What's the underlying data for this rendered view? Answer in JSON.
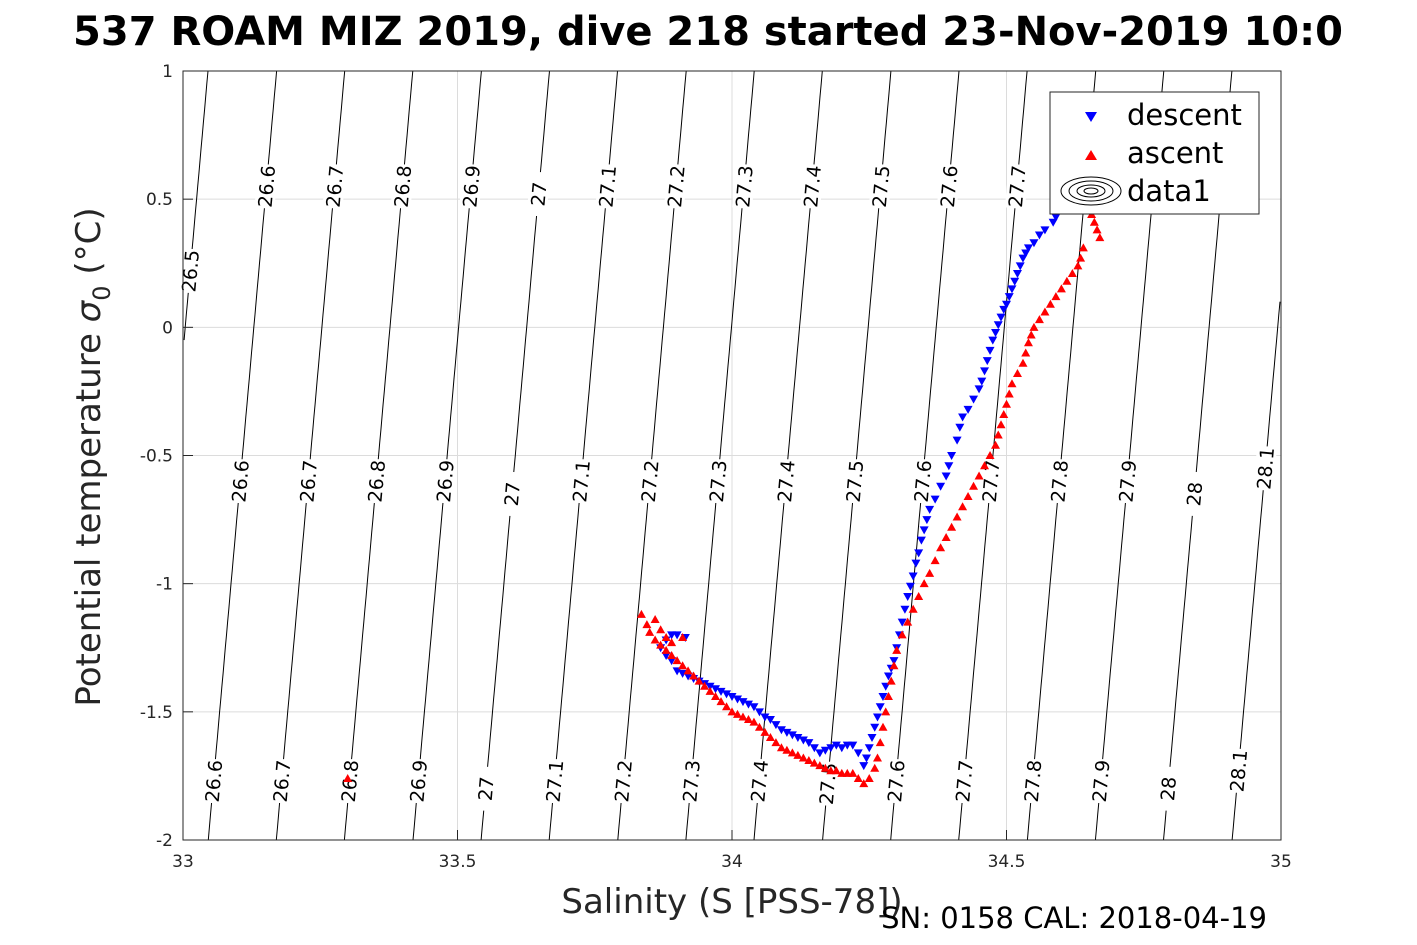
{
  "title": "537 ROAM MIZ 2019, dive 218 started 23-Nov-2019 10:0",
  "footer": "SN: 0158  CAL: 2018-04-19",
  "colors": {
    "descent": "#0000ff",
    "ascent": "#ff0000",
    "grid": "#dcdcdc",
    "axis": "#262626",
    "contour": "#000000"
  },
  "chart_data": {
    "type": "scatter",
    "xlabel": "Salinity (S [PSS-78])",
    "ylabel_main": "Potential temperature ",
    "ylabel_sigma": "σ",
    "ylabel_sub": "0",
    "ylabel_unit": " (°C)",
    "xlim": [
      33,
      35
    ],
    "ylim": [
      -2,
      1
    ],
    "xticks": [
      "33",
      "33.5",
      "34",
      "34.5",
      "35"
    ],
    "yticks": [
      "1",
      "0.5",
      "0",
      "-0.5",
      "-1",
      "-1.5",
      "-2"
    ],
    "grid": true,
    "legend_position": "top-right",
    "legend": [
      "descent",
      "ascent",
      "data1"
    ],
    "contours": {
      "slope": 0.0415,
      "lines": [
        {
          "level": "26.5",
          "x_at_0": 33.004
        },
        {
          "level": "26.6",
          "x_at_0": 33.129
        },
        {
          "level": "26.7",
          "x_at_0": 33.253
        },
        {
          "level": "26.8",
          "x_at_0": 33.377
        },
        {
          "level": "26.9",
          "x_at_0": 33.502
        },
        {
          "level": "27",
          "x_at_0": 33.626
        },
        {
          "level": "27.1",
          "x_at_0": 33.75
        },
        {
          "level": "27.2",
          "x_at_0": 33.875
        },
        {
          "level": "27.3",
          "x_at_0": 33.999
        },
        {
          "level": "27.4",
          "x_at_0": 34.123
        },
        {
          "level": "27.5",
          "x_at_0": 34.248
        },
        {
          "level": "27.6",
          "x_at_0": 34.372
        },
        {
          "level": "27.7",
          "x_at_0": 34.496
        },
        {
          "level": "27.8",
          "x_at_0": 34.621
        },
        {
          "level": "27.9",
          "x_at_0": 34.745
        },
        {
          "level": "28",
          "x_at_0": 34.869
        },
        {
          "level": "28.1",
          "x_at_0": 34.994
        }
      ],
      "labels": [
        {
          "text": "26.5",
          "y": 0.22
        },
        {
          "text": "26.6",
          "y": 0.55
        },
        {
          "text": "26.7",
          "y": 0.55
        },
        {
          "text": "26.8",
          "y": 0.55
        },
        {
          "text": "26.9",
          "y": 0.55
        },
        {
          "text": "27",
          "y": 0.52
        },
        {
          "text": "27.1",
          "y": 0.55
        },
        {
          "text": "27.2",
          "y": 0.55
        },
        {
          "text": "27.3",
          "y": 0.55
        },
        {
          "text": "27.4",
          "y": 0.55
        },
        {
          "text": "27.5",
          "y": 0.55
        },
        {
          "text": "27.6",
          "y": 0.55
        },
        {
          "text": "27.7",
          "y": 0.55
        },
        {
          "text": "26.6",
          "y": -0.6
        },
        {
          "text": "26.7",
          "y": -0.6
        },
        {
          "text": "26.8",
          "y": -0.6
        },
        {
          "text": "26.9",
          "y": -0.6
        },
        {
          "text": "27",
          "y": -0.65
        },
        {
          "text": "27.1",
          "y": -0.6
        },
        {
          "text": "27.2",
          "y": -0.6
        },
        {
          "text": "27.3",
          "y": -0.6
        },
        {
          "text": "27.4",
          "y": -0.6
        },
        {
          "text": "27.5",
          "y": -0.6
        },
        {
          "text": "27.6",
          "y": -0.6
        },
        {
          "text": "27.7",
          "y": -0.6
        },
        {
          "text": "27.8",
          "y": -0.6
        },
        {
          "text": "27.9",
          "y": -0.6
        },
        {
          "text": "28",
          "y": -0.65
        },
        {
          "text": "28.1",
          "y": -0.55
        },
        {
          "text": "26.6",
          "y": -1.77
        },
        {
          "text": "26.7",
          "y": -1.77
        },
        {
          "text": "26.8",
          "y": -1.77
        },
        {
          "text": "26.9",
          "y": -1.77
        },
        {
          "text": "27",
          "y": -1.8
        },
        {
          "text": "27.1",
          "y": -1.77
        },
        {
          "text": "27.2",
          "y": -1.77
        },
        {
          "text": "27.3",
          "y": -1.77
        },
        {
          "text": "27.4",
          "y": -1.77
        },
        {
          "text": "27.5",
          "y": -1.78
        },
        {
          "text": "27.6",
          "y": -1.77
        },
        {
          "text": "27.7",
          "y": -1.77
        },
        {
          "text": "27.8",
          "y": -1.77
        },
        {
          "text": "27.9",
          "y": -1.77
        },
        {
          "text": "28",
          "y": -1.8
        },
        {
          "text": "28.1",
          "y": -1.73
        }
      ]
    },
    "series": [
      {
        "name": "descent",
        "marker": "triangle-down",
        "points": [
          [
            34.6,
            0.46
          ],
          [
            34.59,
            0.43
          ],
          [
            34.585,
            0.41
          ],
          [
            34.57,
            0.38
          ],
          [
            34.56,
            0.36
          ],
          [
            34.55,
            0.33
          ],
          [
            34.54,
            0.31
          ],
          [
            34.535,
            0.29
          ],
          [
            34.53,
            0.27
          ],
          [
            34.525,
            0.24
          ],
          [
            34.52,
            0.21
          ],
          [
            34.515,
            0.18
          ],
          [
            34.51,
            0.15
          ],
          [
            34.505,
            0.12
          ],
          [
            34.5,
            0.09
          ],
          [
            34.495,
            0.07
          ],
          [
            34.49,
            0.04
          ],
          [
            34.485,
            0.01
          ],
          [
            34.48,
            -0.02
          ],
          [
            34.475,
            -0.05
          ],
          [
            34.47,
            -0.09
          ],
          [
            34.465,
            -0.13
          ],
          [
            34.46,
            -0.17
          ],
          [
            34.455,
            -0.21
          ],
          [
            34.45,
            -0.24
          ],
          [
            34.44,
            -0.28
          ],
          [
            34.43,
            -0.32
          ],
          [
            34.42,
            -0.35
          ],
          [
            34.415,
            -0.39
          ],
          [
            34.41,
            -0.44
          ],
          [
            34.4,
            -0.5
          ],
          [
            34.395,
            -0.54
          ],
          [
            34.39,
            -0.58
          ],
          [
            34.38,
            -0.62
          ],
          [
            34.37,
            -0.67
          ],
          [
            34.36,
            -0.71
          ],
          [
            34.355,
            -0.75
          ],
          [
            34.35,
            -0.79
          ],
          [
            34.345,
            -0.83
          ],
          [
            34.34,
            -0.88
          ],
          [
            34.335,
            -0.92
          ],
          [
            34.33,
            -0.97
          ],
          [
            34.325,
            -1.01
          ],
          [
            34.32,
            -1.05
          ],
          [
            34.315,
            -1.1
          ],
          [
            34.31,
            -1.15
          ],
          [
            34.305,
            -1.2
          ],
          [
            34.3,
            -1.25
          ],
          [
            34.295,
            -1.3
          ],
          [
            34.29,
            -1.33
          ],
          [
            34.285,
            -1.36
          ],
          [
            34.28,
            -1.4
          ],
          [
            34.275,
            -1.44
          ],
          [
            34.27,
            -1.48
          ],
          [
            34.265,
            -1.52
          ],
          [
            34.26,
            -1.56
          ],
          [
            34.255,
            -1.6
          ],
          [
            34.25,
            -1.64
          ],
          [
            34.245,
            -1.68
          ],
          [
            34.24,
            -1.71
          ],
          [
            34.23,
            -1.66
          ],
          [
            34.22,
            -1.63
          ],
          [
            34.21,
            -1.63
          ],
          [
            34.2,
            -1.64
          ],
          [
            34.19,
            -1.63
          ],
          [
            34.18,
            -1.64
          ],
          [
            34.17,
            -1.65
          ],
          [
            34.16,
            -1.66
          ],
          [
            34.15,
            -1.64
          ],
          [
            34.14,
            -1.62
          ],
          [
            34.13,
            -1.61
          ],
          [
            34.12,
            -1.6
          ],
          [
            34.11,
            -1.59
          ],
          [
            34.1,
            -1.58
          ],
          [
            34.09,
            -1.57
          ],
          [
            34.08,
            -1.55
          ],
          [
            34.07,
            -1.53
          ],
          [
            34.06,
            -1.52
          ],
          [
            34.05,
            -1.5
          ],
          [
            34.04,
            -1.48
          ],
          [
            34.03,
            -1.47
          ],
          [
            34.02,
            -1.46
          ],
          [
            34.01,
            -1.45
          ],
          [
            34.0,
            -1.44
          ],
          [
            33.99,
            -1.43
          ],
          [
            33.98,
            -1.42
          ],
          [
            33.97,
            -1.41
          ],
          [
            33.96,
            -1.4
          ],
          [
            33.95,
            -1.39
          ],
          [
            33.94,
            -1.38
          ],
          [
            33.93,
            -1.37
          ],
          [
            33.92,
            -1.36
          ],
          [
            33.91,
            -1.35
          ],
          [
            33.9,
            -1.34
          ],
          [
            33.89,
            -1.3
          ],
          [
            33.88,
            -1.28
          ],
          [
            33.87,
            -1.25
          ],
          [
            33.88,
            -1.22
          ],
          [
            33.89,
            -1.2
          ],
          [
            33.9,
            -1.2
          ],
          [
            33.915,
            -1.21
          ]
        ]
      },
      {
        "name": "ascent",
        "marker": "triangle-up",
        "points": [
          [
            34.67,
            0.35
          ],
          [
            34.665,
            0.38
          ],
          [
            34.66,
            0.41
          ],
          [
            34.655,
            0.44
          ],
          [
            34.65,
            0.46
          ],
          [
            34.64,
            0.31
          ],
          [
            34.635,
            0.27
          ],
          [
            34.63,
            0.24
          ],
          [
            34.62,
            0.21
          ],
          [
            34.61,
            0.18
          ],
          [
            34.6,
            0.15
          ],
          [
            34.59,
            0.12
          ],
          [
            34.58,
            0.09
          ],
          [
            34.57,
            0.06
          ],
          [
            34.56,
            0.03
          ],
          [
            34.55,
            0.0
          ],
          [
            34.545,
            -0.03
          ],
          [
            34.54,
            -0.06
          ],
          [
            34.535,
            -0.1
          ],
          [
            34.53,
            -0.14
          ],
          [
            34.52,
            -0.18
          ],
          [
            34.51,
            -0.22
          ],
          [
            34.505,
            -0.26
          ],
          [
            34.5,
            -0.3
          ],
          [
            34.495,
            -0.34
          ],
          [
            34.49,
            -0.38
          ],
          [
            34.485,
            -0.42
          ],
          [
            34.48,
            -0.46
          ],
          [
            34.47,
            -0.5
          ],
          [
            34.46,
            -0.54
          ],
          [
            34.45,
            -0.58
          ],
          [
            34.44,
            -0.62
          ],
          [
            34.43,
            -0.66
          ],
          [
            34.42,
            -0.7
          ],
          [
            34.41,
            -0.74
          ],
          [
            34.4,
            -0.78
          ],
          [
            34.39,
            -0.82
          ],
          [
            34.38,
            -0.86
          ],
          [
            34.37,
            -0.91
          ],
          [
            34.36,
            -0.96
          ],
          [
            34.35,
            -1.0
          ],
          [
            34.34,
            -1.05
          ],
          [
            34.33,
            -1.1
          ],
          [
            34.32,
            -1.15
          ],
          [
            34.31,
            -1.2
          ],
          [
            34.3,
            -1.26
          ],
          [
            34.295,
            -1.32
          ],
          [
            34.29,
            -1.38
          ],
          [
            34.285,
            -1.44
          ],
          [
            34.28,
            -1.5
          ],
          [
            34.275,
            -1.56
          ],
          [
            34.27,
            -1.62
          ],
          [
            34.265,
            -1.68
          ],
          [
            34.26,
            -1.72
          ],
          [
            34.25,
            -1.76
          ],
          [
            34.24,
            -1.78
          ],
          [
            34.23,
            -1.76
          ],
          [
            34.22,
            -1.74
          ],
          [
            34.21,
            -1.74
          ],
          [
            34.2,
            -1.74
          ],
          [
            34.19,
            -1.73
          ],
          [
            34.18,
            -1.73
          ],
          [
            34.17,
            -1.72
          ],
          [
            34.16,
            -1.71
          ],
          [
            34.15,
            -1.7
          ],
          [
            34.14,
            -1.69
          ],
          [
            34.13,
            -1.68
          ],
          [
            34.12,
            -1.67
          ],
          [
            34.11,
            -1.66
          ],
          [
            34.1,
            -1.65
          ],
          [
            34.09,
            -1.64
          ],
          [
            34.08,
            -1.62
          ],
          [
            34.07,
            -1.6
          ],
          [
            34.06,
            -1.58
          ],
          [
            34.05,
            -1.56
          ],
          [
            34.04,
            -1.54
          ],
          [
            34.03,
            -1.53
          ],
          [
            34.02,
            -1.52
          ],
          [
            34.01,
            -1.51
          ],
          [
            34.0,
            -1.5
          ],
          [
            33.99,
            -1.48
          ],
          [
            33.98,
            -1.46
          ],
          [
            33.97,
            -1.44
          ],
          [
            33.96,
            -1.42
          ],
          [
            33.95,
            -1.4
          ],
          [
            33.94,
            -1.38
          ],
          [
            33.93,
            -1.36
          ],
          [
            33.92,
            -1.34
          ],
          [
            33.91,
            -1.32
          ],
          [
            33.9,
            -1.3
          ],
          [
            33.89,
            -1.28
          ],
          [
            33.88,
            -1.26
          ],
          [
            33.87,
            -1.24
          ],
          [
            33.86,
            -1.22
          ],
          [
            33.85,
            -1.19
          ],
          [
            33.845,
            -1.16
          ],
          [
            33.835,
            -1.12
          ],
          [
            33.86,
            -1.14
          ],
          [
            33.87,
            -1.18
          ],
          [
            33.88,
            -1.21
          ],
          [
            33.89,
            -1.23
          ],
          [
            33.91,
            -1.21
          ],
          [
            33.3,
            -1.76
          ]
        ]
      }
    ]
  }
}
